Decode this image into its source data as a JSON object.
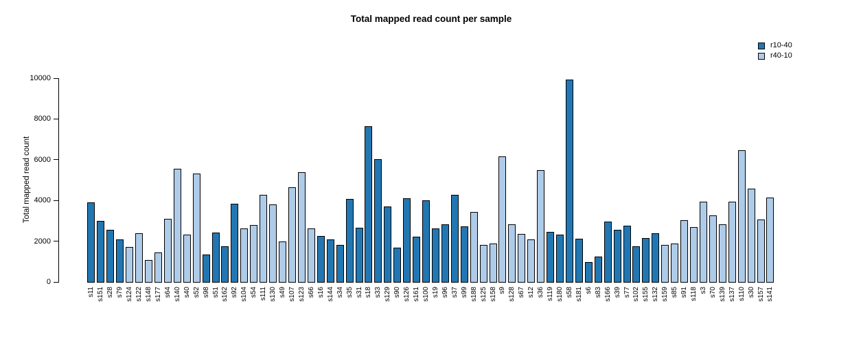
{
  "title": "Total mapped read count per sample",
  "legend": {
    "items": [
      {
        "label": "r10-40",
        "color": "#2277b2"
      },
      {
        "label": "r40-10",
        "color": "#aecbe8"
      }
    ]
  },
  "chart_data": {
    "type": "bar",
    "title": "Total mapped read count per sample",
    "xlabel": "",
    "ylabel": "Total mapped read count",
    "ylim": [
      0,
      10000
    ],
    "yticks": [
      0,
      2000,
      4000,
      6000,
      8000,
      10000
    ],
    "grid": false,
    "legend_position": "top-right",
    "bar_border_color": "#000000",
    "series_colors": {
      "r10-40": "#2277b2",
      "r40-10": "#aecbe8"
    },
    "categories": [
      "s11",
      "s151",
      "s28",
      "s79",
      "s124",
      "s122",
      "s148",
      "s177",
      "s64",
      "s140",
      "s40",
      "s52",
      "s98",
      "s51",
      "s162",
      "s92",
      "s104",
      "s54",
      "s111",
      "s130",
      "s49",
      "s107",
      "s123",
      "s66",
      "s16",
      "s144",
      "s34",
      "s35",
      "s31",
      "s18",
      "s33",
      "s129",
      "s90",
      "s126",
      "s161",
      "s100",
      "s19",
      "s96",
      "s37",
      "s99",
      "s188",
      "s125",
      "s158",
      "s9",
      "s128",
      "s67",
      "s12",
      "s36",
      "s119",
      "s180",
      "s58",
      "s181",
      "s6",
      "s83",
      "s166",
      "s39",
      "s77",
      "s102",
      "s155",
      "s132",
      "s159",
      "s85",
      "s91",
      "s118",
      "s3",
      "s70",
      "s139",
      "s137",
      "s110",
      "s30",
      "s157",
      "s141"
    ],
    "values": [
      3890,
      2980,
      2560,
      2100,
      1730,
      2400,
      1090,
      1440,
      3110,
      5550,
      2340,
      5330,
      1350,
      2430,
      1760,
      3840,
      2630,
      2790,
      4290,
      3820,
      2000,
      4650,
      5380,
      2630,
      2250,
      2100,
      1830,
      4080,
      2660,
      7650,
      6020,
      3710,
      1690,
      4100,
      2230,
      3990,
      2630,
      2820,
      4280,
      2730,
      3450,
      1830,
      1900,
      6150,
      2830,
      2360,
      2100,
      5490,
      2450,
      2330,
      9920,
      2130,
      980,
      1250,
      2950,
      2570,
      2770,
      1760,
      2170,
      2380,
      1810,
      1900,
      3020,
      2710,
      3950,
      3250,
      2830,
      3930,
      6480,
      4580,
      3050,
      4150
    ],
    "groups": [
      "r10-40",
      "r10-40",
      "r10-40",
      "r10-40",
      "r40-10",
      "r40-10",
      "r40-10",
      "r40-10",
      "r40-10",
      "r40-10",
      "r40-10",
      "r40-10",
      "r10-40",
      "r10-40",
      "r10-40",
      "r10-40",
      "r40-10",
      "r40-10",
      "r40-10",
      "r40-10",
      "r40-10",
      "r40-10",
      "r40-10",
      "r40-10",
      "r10-40",
      "r10-40",
      "r10-40",
      "r10-40",
      "r10-40",
      "r10-40",
      "r10-40",
      "r10-40",
      "r10-40",
      "r10-40",
      "r10-40",
      "r10-40",
      "r10-40",
      "r10-40",
      "r10-40",
      "r10-40",
      "r40-10",
      "r40-10",
      "r40-10",
      "r40-10",
      "r40-10",
      "r40-10",
      "r40-10",
      "r40-10",
      "r10-40",
      "r10-40",
      "r10-40",
      "r10-40",
      "r10-40",
      "r10-40",
      "r10-40",
      "r10-40",
      "r10-40",
      "r10-40",
      "r10-40",
      "r10-40",
      "r40-10",
      "r40-10",
      "r40-10",
      "r40-10",
      "r40-10",
      "r40-10",
      "r40-10",
      "r40-10",
      "r40-10",
      "r40-10",
      "r40-10",
      "r40-10"
    ]
  }
}
